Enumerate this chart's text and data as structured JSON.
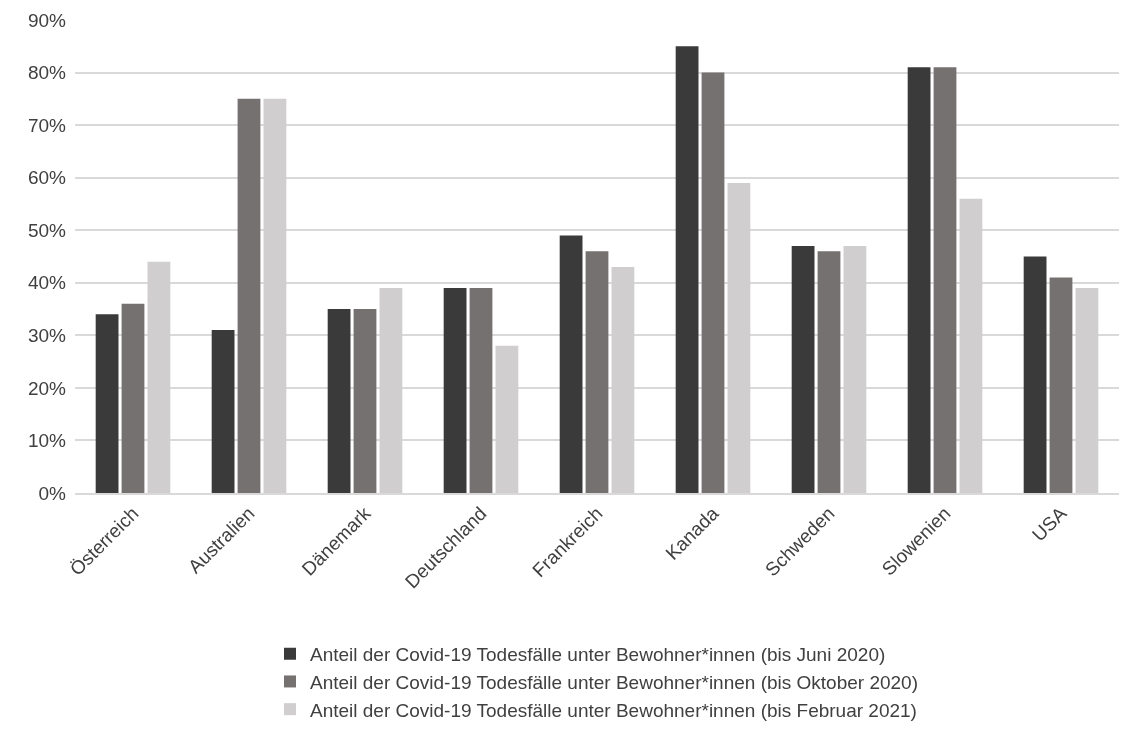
{
  "chart_data": {
    "type": "bar",
    "categories": [
      "Österreich",
      "Australien",
      "Dänemark",
      "Deutschland",
      "Frankreich",
      "Kanada",
      "Schweden",
      "Slowenien",
      "USA"
    ],
    "series": [
      {
        "name": "Anteil der Covid-19 Todesfälle unter Bewohner*innen (bis Juni 2020)",
        "color": "#3a3a3a",
        "values": [
          34,
          31,
          35,
          39,
          49,
          85,
          47,
          81,
          45
        ]
      },
      {
        "name": "Anteil der Covid-19 Todesfälle unter Bewohner*innen (bis Oktober 2020)",
        "color": "#767171",
        "values": [
          36,
          75,
          35,
          39,
          46,
          80,
          46,
          81,
          41
        ]
      },
      {
        "name": "Anteil der Covid-19 Todesfälle unter Bewohner*innen (bis Februar 2021)",
        "color": "#d0cece",
        "values": [
          44,
          75,
          39,
          28,
          43,
          59,
          47,
          56,
          39
        ]
      }
    ],
    "ylim": [
      0,
      90
    ],
    "yticks": [
      {
        "value": 0,
        "label": "0%"
      },
      {
        "value": 10,
        "label": "10%"
      },
      {
        "value": 20,
        "label": "20%"
      },
      {
        "value": 30,
        "label": "30%"
      },
      {
        "value": 40,
        "label": "40%"
      },
      {
        "value": 50,
        "label": "50%"
      },
      {
        "value": 60,
        "label": "60%"
      },
      {
        "value": 70,
        "label": "70%"
      },
      {
        "value": 80,
        "label": "80%"
      },
      {
        "value": 90,
        "label": "90%"
      }
    ],
    "grid": "y",
    "legend": "bottom"
  }
}
